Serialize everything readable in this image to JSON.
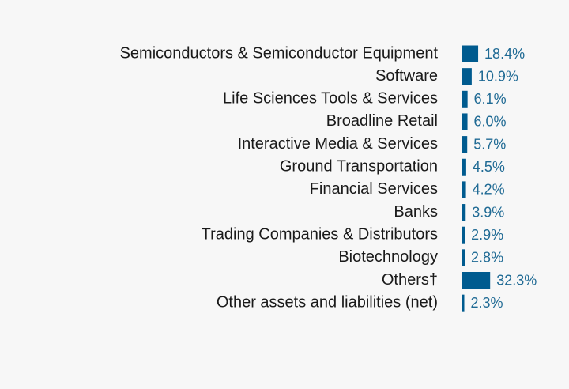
{
  "chart_data": {
    "type": "bar",
    "orientation": "horizontal",
    "color": "#005b8f",
    "categories": [
      "Semiconductors & Semiconductor Equipment",
      "Software",
      "Life Sciences Tools & Services",
      "Broadline Retail",
      "Interactive Media & Services",
      "Ground Transportation",
      "Financial Services",
      "Banks",
      "Trading Companies & Distributors",
      "Biotechnology",
      "Others†",
      "Other assets and liabilities (net)"
    ],
    "values": [
      18.4,
      10.9,
      6.1,
      6.0,
      5.7,
      4.5,
      4.2,
      3.9,
      2.9,
      2.8,
      32.3,
      2.3
    ],
    "value_labels": [
      "18.4%",
      "10.9%",
      "6.1%",
      "6.0%",
      "5.7%",
      "4.5%",
      "4.2%",
      "3.9%",
      "2.9%",
      "2.8%",
      "32.3%",
      "2.3%"
    ]
  }
}
